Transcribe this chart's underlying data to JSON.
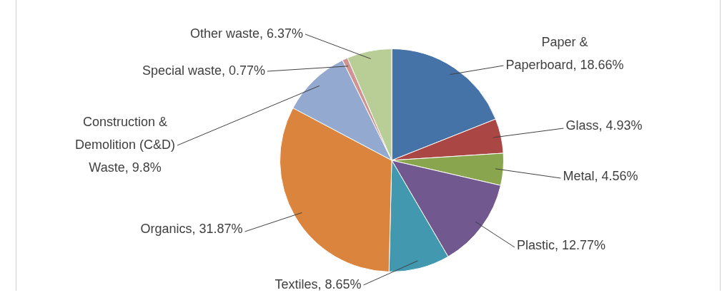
{
  "chart_data": {
    "type": "pie",
    "categories": [
      "Paper & Paperboard",
      "Glass",
      "Metal",
      "Plastic",
      "Textiles",
      "Organics",
      "Construction & Demolition (C&D) Waste",
      "Special waste",
      "Other waste"
    ],
    "values": [
      18.66,
      4.93,
      4.56,
      12.77,
      8.65,
      31.87,
      9.8,
      0.77,
      6.37
    ],
    "colors": [
      "#4572a7",
      "#aa4643",
      "#89a54e",
      "#71588f",
      "#4198af",
      "#db843d",
      "#93a9cf",
      "#d19392",
      "#b9cd96"
    ],
    "value_labels": [
      "18.66%",
      "4.93%",
      "4.56%",
      "12.77%",
      "8.65%",
      "31.87%",
      "9.8%",
      "0.77%",
      "6.37%"
    ],
    "legend": false
  }
}
